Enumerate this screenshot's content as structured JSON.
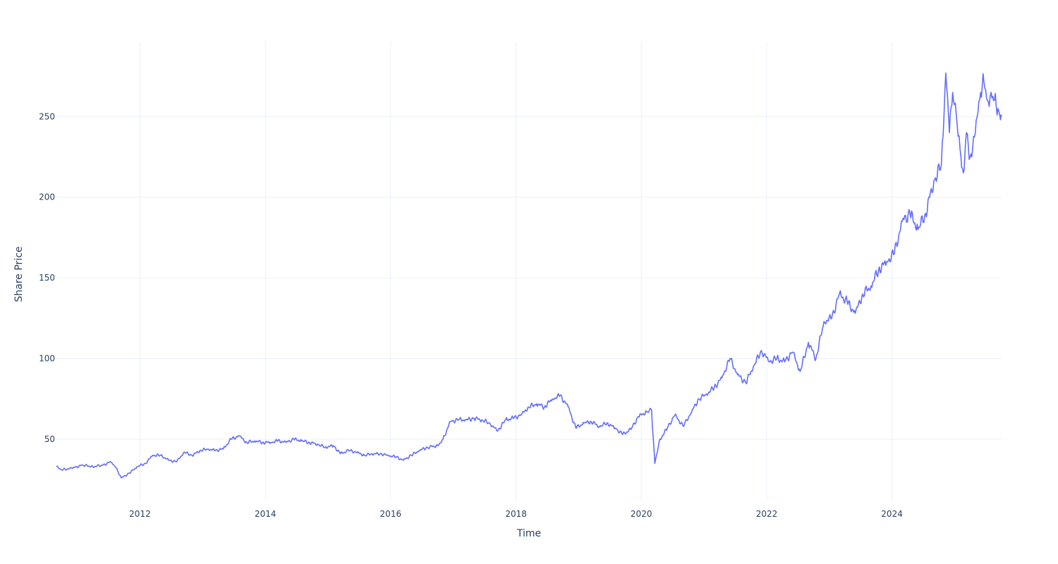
{
  "chart_data": {
    "type": "line",
    "xlabel": "Time",
    "ylabel": "Share Price",
    "xlim": [
      "2010-09-01",
      "2025-10-01"
    ],
    "ylim": [
      12,
      296
    ],
    "xticks": [
      "2012",
      "2014",
      "2016",
      "2018",
      "2020",
      "2022",
      "2024"
    ],
    "yticks": [
      50,
      100,
      150,
      200,
      250
    ],
    "grid": true,
    "legend": "none",
    "color": "#636efa",
    "series": [
      {
        "x": [
          "2010-09-01",
          "2010-10-01",
          "2010-12-01",
          "2011-02-01",
          "2011-04-01",
          "2011-06-01",
          "2011-07-15",
          "2011-08-10",
          "2011-09-15",
          "2011-11-01",
          "2011-12-15",
          "2012-02-01",
          "2012-03-15",
          "2012-05-01",
          "2012-06-15",
          "2012-08-01",
          "2012-09-15",
          "2012-11-01",
          "2012-12-15",
          "2013-02-01",
          "2013-03-15",
          "2013-05-01",
          "2013-06-15",
          "2013-08-01",
          "2013-09-15",
          "2013-11-01",
          "2013-12-15",
          "2014-02-01",
          "2014-03-15",
          "2014-05-01",
          "2014-06-15",
          "2014-08-01",
          "2014-09-15",
          "2014-11-01",
          "2014-12-15",
          "2015-02-01",
          "2015-03-15",
          "2015-05-01",
          "2015-06-15",
          "2015-08-01",
          "2015-09-15",
          "2015-11-01",
          "2015-12-15",
          "2016-02-01",
          "2016-03-15",
          "2016-05-01",
          "2016-06-15",
          "2016-08-01",
          "2016-10-01",
          "2016-11-01",
          "2016-12-15",
          "2017-02-01",
          "2017-03-15",
          "2017-05-01",
          "2017-06-15",
          "2017-08-01",
          "2017-09-15",
          "2017-11-01",
          "2017-12-15",
          "2018-02-01",
          "2018-03-15",
          "2018-05-01",
          "2018-06-15",
          "2018-08-01",
          "2018-09-15",
          "2018-11-01",
          "2018-12-15",
          "2019-02-01",
          "2019-03-15",
          "2019-05-01",
          "2019-06-15",
          "2019-08-01",
          "2019-09-15",
          "2019-11-01",
          "2019-12-15",
          "2020-02-01",
          "2020-03-01",
          "2020-03-20",
          "2020-04-15",
          "2020-06-01",
          "2020-07-15",
          "2020-09-01",
          "2020-10-15",
          "2020-12-01",
          "2021-01-15",
          "2021-03-01",
          "2021-04-15",
          "2021-06-01",
          "2021-07-15",
          "2021-09-01",
          "2021-10-15",
          "2021-12-01",
          "2022-01-15",
          "2022-03-01",
          "2022-04-15",
          "2022-06-01",
          "2022-07-15",
          "2022-09-01",
          "2022-10-15",
          "2022-12-01",
          "2023-01-15",
          "2023-03-01",
          "2023-04-15",
          "2023-06-01",
          "2023-07-15",
          "2023-09-01",
          "2023-10-15",
          "2023-12-01",
          "2024-01-15",
          "2024-03-01",
          "2024-04-15",
          "2024-06-01",
          "2024-07-15",
          "2024-09-01",
          "2024-10-15",
          "2024-11-10",
          "2024-12-01",
          "2024-12-20",
          "2025-01-15",
          "2025-02-01",
          "2025-02-20",
          "2025-03-10",
          "2025-04-01",
          "2025-04-10",
          "2025-05-01",
          "2025-06-01",
          "2025-06-20",
          "2025-07-10",
          "2025-08-01",
          "2025-08-20",
          "2025-09-10",
          "2025-09-25",
          "2025-10-01"
        ],
        "y": [
          33,
          31,
          32,
          34,
          33,
          34,
          36,
          33,
          26,
          29,
          33,
          35,
          40,
          40,
          37,
          36,
          42,
          40,
          43,
          44,
          43,
          44,
          50,
          52,
          48,
          49,
          48,
          48,
          49,
          48,
          50,
          49,
          48,
          47,
          45,
          46,
          41,
          43,
          42,
          40,
          41,
          41,
          40,
          39,
          37,
          40,
          43,
          45,
          46,
          50,
          61,
          62,
          62,
          63,
          62,
          60,
          55,
          62,
          63,
          65,
          70,
          72,
          70,
          75,
          77,
          70,
          57,
          60,
          61,
          58,
          60,
          57,
          53,
          56,
          64,
          67,
          68,
          35,
          49,
          57,
          65,
          58,
          66,
          75,
          78,
          82,
          88,
          100,
          90,
          85,
          95,
          105,
          98,
          100,
          98,
          104,
          92,
          110,
          100,
          123,
          125,
          140,
          135,
          128,
          140,
          145,
          155,
          160,
          165,
          185,
          190,
          180,
          190,
          210,
          220,
          277,
          240,
          265,
          245,
          230,
          215,
          240,
          225,
          225,
          240,
          265,
          272,
          260,
          265,
          260,
          255,
          248,
          250
        ]
      }
    ]
  }
}
